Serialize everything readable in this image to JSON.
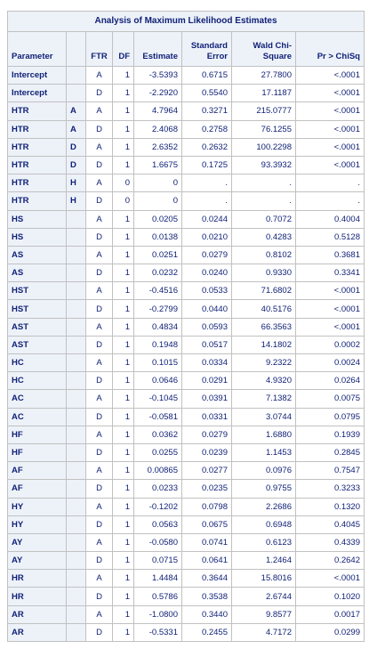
{
  "title": "Analysis of Maximum Likelihood Estimates",
  "columns": [
    "Parameter",
    "",
    "FTR",
    "DF",
    "Estimate",
    "Standard Error",
    "Wald Chi-Square",
    "Pr > ChiSq"
  ],
  "rows": [
    [
      "Intercept",
      "",
      "A",
      "1",
      "-3.5393",
      "0.6715",
      "27.7800",
      "<.0001"
    ],
    [
      "Intercept",
      "",
      "D",
      "1",
      "-2.2920",
      "0.5540",
      "17.1187",
      "<.0001"
    ],
    [
      "HTR",
      "A",
      "A",
      "1",
      "4.7964",
      "0.3271",
      "215.0777",
      "<.0001"
    ],
    [
      "HTR",
      "A",
      "D",
      "1",
      "2.4068",
      "0.2758",
      "76.1255",
      "<.0001"
    ],
    [
      "HTR",
      "D",
      "A",
      "1",
      "2.6352",
      "0.2632",
      "100.2298",
      "<.0001"
    ],
    [
      "HTR",
      "D",
      "D",
      "1",
      "1.6675",
      "0.1725",
      "93.3932",
      "<.0001"
    ],
    [
      "HTR",
      "H",
      "A",
      "0",
      "0",
      ".",
      ".",
      "."
    ],
    [
      "HTR",
      "H",
      "D",
      "0",
      "0",
      ".",
      ".",
      "."
    ],
    [
      "HS",
      "",
      "A",
      "1",
      "0.0205",
      "0.0244",
      "0.7072",
      "0.4004"
    ],
    [
      "HS",
      "",
      "D",
      "1",
      "0.0138",
      "0.0210",
      "0.4283",
      "0.5128"
    ],
    [
      "AS",
      "",
      "A",
      "1",
      "0.0251",
      "0.0279",
      "0.8102",
      "0.3681"
    ],
    [
      "AS",
      "",
      "D",
      "1",
      "0.0232",
      "0.0240",
      "0.9330",
      "0.3341"
    ],
    [
      "HST",
      "",
      "A",
      "1",
      "-0.4516",
      "0.0533",
      "71.6802",
      "<.0001"
    ],
    [
      "HST",
      "",
      "D",
      "1",
      "-0.2799",
      "0.0440",
      "40.5176",
      "<.0001"
    ],
    [
      "AST",
      "",
      "A",
      "1",
      "0.4834",
      "0.0593",
      "66.3563",
      "<.0001"
    ],
    [
      "AST",
      "",
      "D",
      "1",
      "0.1948",
      "0.0517",
      "14.1802",
      "0.0002"
    ],
    [
      "HC",
      "",
      "A",
      "1",
      "0.1015",
      "0.0334",
      "9.2322",
      "0.0024"
    ],
    [
      "HC",
      "",
      "D",
      "1",
      "0.0646",
      "0.0291",
      "4.9320",
      "0.0264"
    ],
    [
      "AC",
      "",
      "A",
      "1",
      "-0.1045",
      "0.0391",
      "7.1382",
      "0.0075"
    ],
    [
      "AC",
      "",
      "D",
      "1",
      "-0.0581",
      "0.0331",
      "3.0744",
      "0.0795"
    ],
    [
      "HF",
      "",
      "A",
      "1",
      "0.0362",
      "0.0279",
      "1.6880",
      "0.1939"
    ],
    [
      "HF",
      "",
      "D",
      "1",
      "0.0255",
      "0.0239",
      "1.1453",
      "0.2845"
    ],
    [
      "AF",
      "",
      "A",
      "1",
      "0.00865",
      "0.0277",
      "0.0976",
      "0.7547"
    ],
    [
      "AF",
      "",
      "D",
      "1",
      "0.0233",
      "0.0235",
      "0.9755",
      "0.3233"
    ],
    [
      "HY",
      "",
      "A",
      "1",
      "-0.1202",
      "0.0798",
      "2.2686",
      "0.1320"
    ],
    [
      "HY",
      "",
      "D",
      "1",
      "0.0563",
      "0.0675",
      "0.6948",
      "0.4045"
    ],
    [
      "AY",
      "",
      "A",
      "1",
      "-0.0580",
      "0.0741",
      "0.6123",
      "0.4339"
    ],
    [
      "AY",
      "",
      "D",
      "1",
      "0.0715",
      "0.0641",
      "1.2464",
      "0.2642"
    ],
    [
      "HR",
      "",
      "A",
      "1",
      "1.4484",
      "0.3644",
      "15.8016",
      "<.0001"
    ],
    [
      "HR",
      "",
      "D",
      "1",
      "0.5786",
      "0.3538",
      "2.6744",
      "0.1020"
    ],
    [
      "AR",
      "",
      "A",
      "1",
      "-1.0800",
      "0.3440",
      "9.8577",
      "0.0017"
    ],
    [
      "AR",
      "",
      "D",
      "1",
      "-0.5331",
      "0.2455",
      "4.7172",
      "0.0299"
    ]
  ]
}
